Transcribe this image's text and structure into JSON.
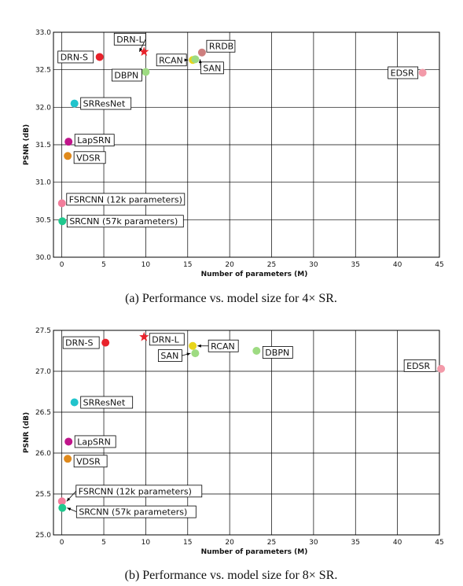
{
  "captions": [
    "(a)  Performance vs. model size for 4× SR.",
    "(b)  Performance vs. model size for 8× SR."
  ],
  "chart_data": [
    {
      "type": "scatter",
      "title": "",
      "xlabel": "Number of parameters (M)",
      "ylabel": "PSNR (dB)",
      "xlim": [
        -1,
        45
      ],
      "ylim": [
        30.0,
        33.0
      ],
      "xticks": [
        "0",
        "5",
        "10",
        "15",
        "20",
        "25",
        "30",
        "35",
        "40",
        "45"
      ],
      "yticks": [
        "30.0",
        "30.5",
        "31.0",
        "31.5",
        "32.0",
        "32.5",
        "33.0"
      ],
      "grid": true,
      "points": [
        {
          "label": "DRN-S",
          "x": 4.5,
          "y": 32.67,
          "color": "#e8222b",
          "marker": "circle"
        },
        {
          "label": "DRN-L",
          "x": 9.8,
          "y": 32.74,
          "color": "#e8222b",
          "marker": "star"
        },
        {
          "label": "RRDB",
          "x": 16.7,
          "y": 32.73,
          "color": "#cd7f7f",
          "marker": "circle"
        },
        {
          "label": "RCAN",
          "x": 15.6,
          "y": 32.63,
          "color": "#e8d51a",
          "marker": "circle"
        },
        {
          "label": "SAN",
          "x": 15.9,
          "y": 32.64,
          "color": "#9edb82",
          "marker": "circle"
        },
        {
          "label": "DBPN",
          "x": 10.0,
          "y": 32.47,
          "color": "#9edb82",
          "marker": "circle"
        },
        {
          "label": "EDSR",
          "x": 43.0,
          "y": 32.46,
          "color": "#f39aa9",
          "marker": "circle"
        },
        {
          "label": "SRResNet",
          "x": 1.5,
          "y": 32.05,
          "color": "#21c4cc",
          "marker": "circle"
        },
        {
          "label": "LapSRN",
          "x": 0.8,
          "y": 31.54,
          "color": "#c0158a",
          "marker": "circle"
        },
        {
          "label": "VDSR",
          "x": 0.7,
          "y": 31.35,
          "color": "#e08a1c",
          "marker": "circle"
        },
        {
          "label": "FSRCNN (12k parameters)",
          "x": 0.01,
          "y": 30.72,
          "color": "#f27d9b",
          "marker": "circle"
        },
        {
          "label": "SRCNN (57k parameters)",
          "x": 0.06,
          "y": 30.48,
          "color": "#1fc88e",
          "marker": "circle"
        }
      ]
    },
    {
      "type": "scatter",
      "title": "",
      "xlabel": "Number of parameters (M)",
      "ylabel": "PSNR (dB)",
      "xlim": [
        -1,
        45
      ],
      "ylim": [
        25.0,
        27.5
      ],
      "xticks": [
        "0",
        "5",
        "10",
        "15",
        "20",
        "25",
        "30",
        "35",
        "40",
        "45"
      ],
      "yticks": [
        "25.0",
        "25.5",
        "26.0",
        "26.5",
        "27.0",
        "27.5"
      ],
      "grid": true,
      "points": [
        {
          "label": "DRN-S",
          "x": 5.2,
          "y": 27.35,
          "color": "#e8222b",
          "marker": "circle"
        },
        {
          "label": "DRN-L",
          "x": 9.8,
          "y": 27.42,
          "color": "#e8222b",
          "marker": "star"
        },
        {
          "label": "RCAN",
          "x": 15.6,
          "y": 27.31,
          "color": "#e8d51a",
          "marker": "circle"
        },
        {
          "label": "SAN",
          "x": 15.9,
          "y": 27.22,
          "color": "#9edb82",
          "marker": "circle"
        },
        {
          "label": "DBPN",
          "x": 23.2,
          "y": 27.25,
          "color": "#9edb82",
          "marker": "circle"
        },
        {
          "label": "EDSR",
          "x": 45.2,
          "y": 27.03,
          "color": "#f39aa9",
          "marker": "circle"
        },
        {
          "label": "SRResNet",
          "x": 1.5,
          "y": 26.62,
          "color": "#21c4cc",
          "marker": "circle"
        },
        {
          "label": "LapSRN",
          "x": 0.8,
          "y": 26.14,
          "color": "#c0158a",
          "marker": "circle"
        },
        {
          "label": "VDSR",
          "x": 0.7,
          "y": 25.93,
          "color": "#e08a1c",
          "marker": "circle"
        },
        {
          "label": "FSRCNN (12k parameters)",
          "x": 0.01,
          "y": 25.41,
          "color": "#f27d9b",
          "marker": "circle"
        },
        {
          "label": "SRCNN (57k parameters)",
          "x": 0.06,
          "y": 25.33,
          "color": "#1fc88e",
          "marker": "circle"
        }
      ]
    }
  ]
}
